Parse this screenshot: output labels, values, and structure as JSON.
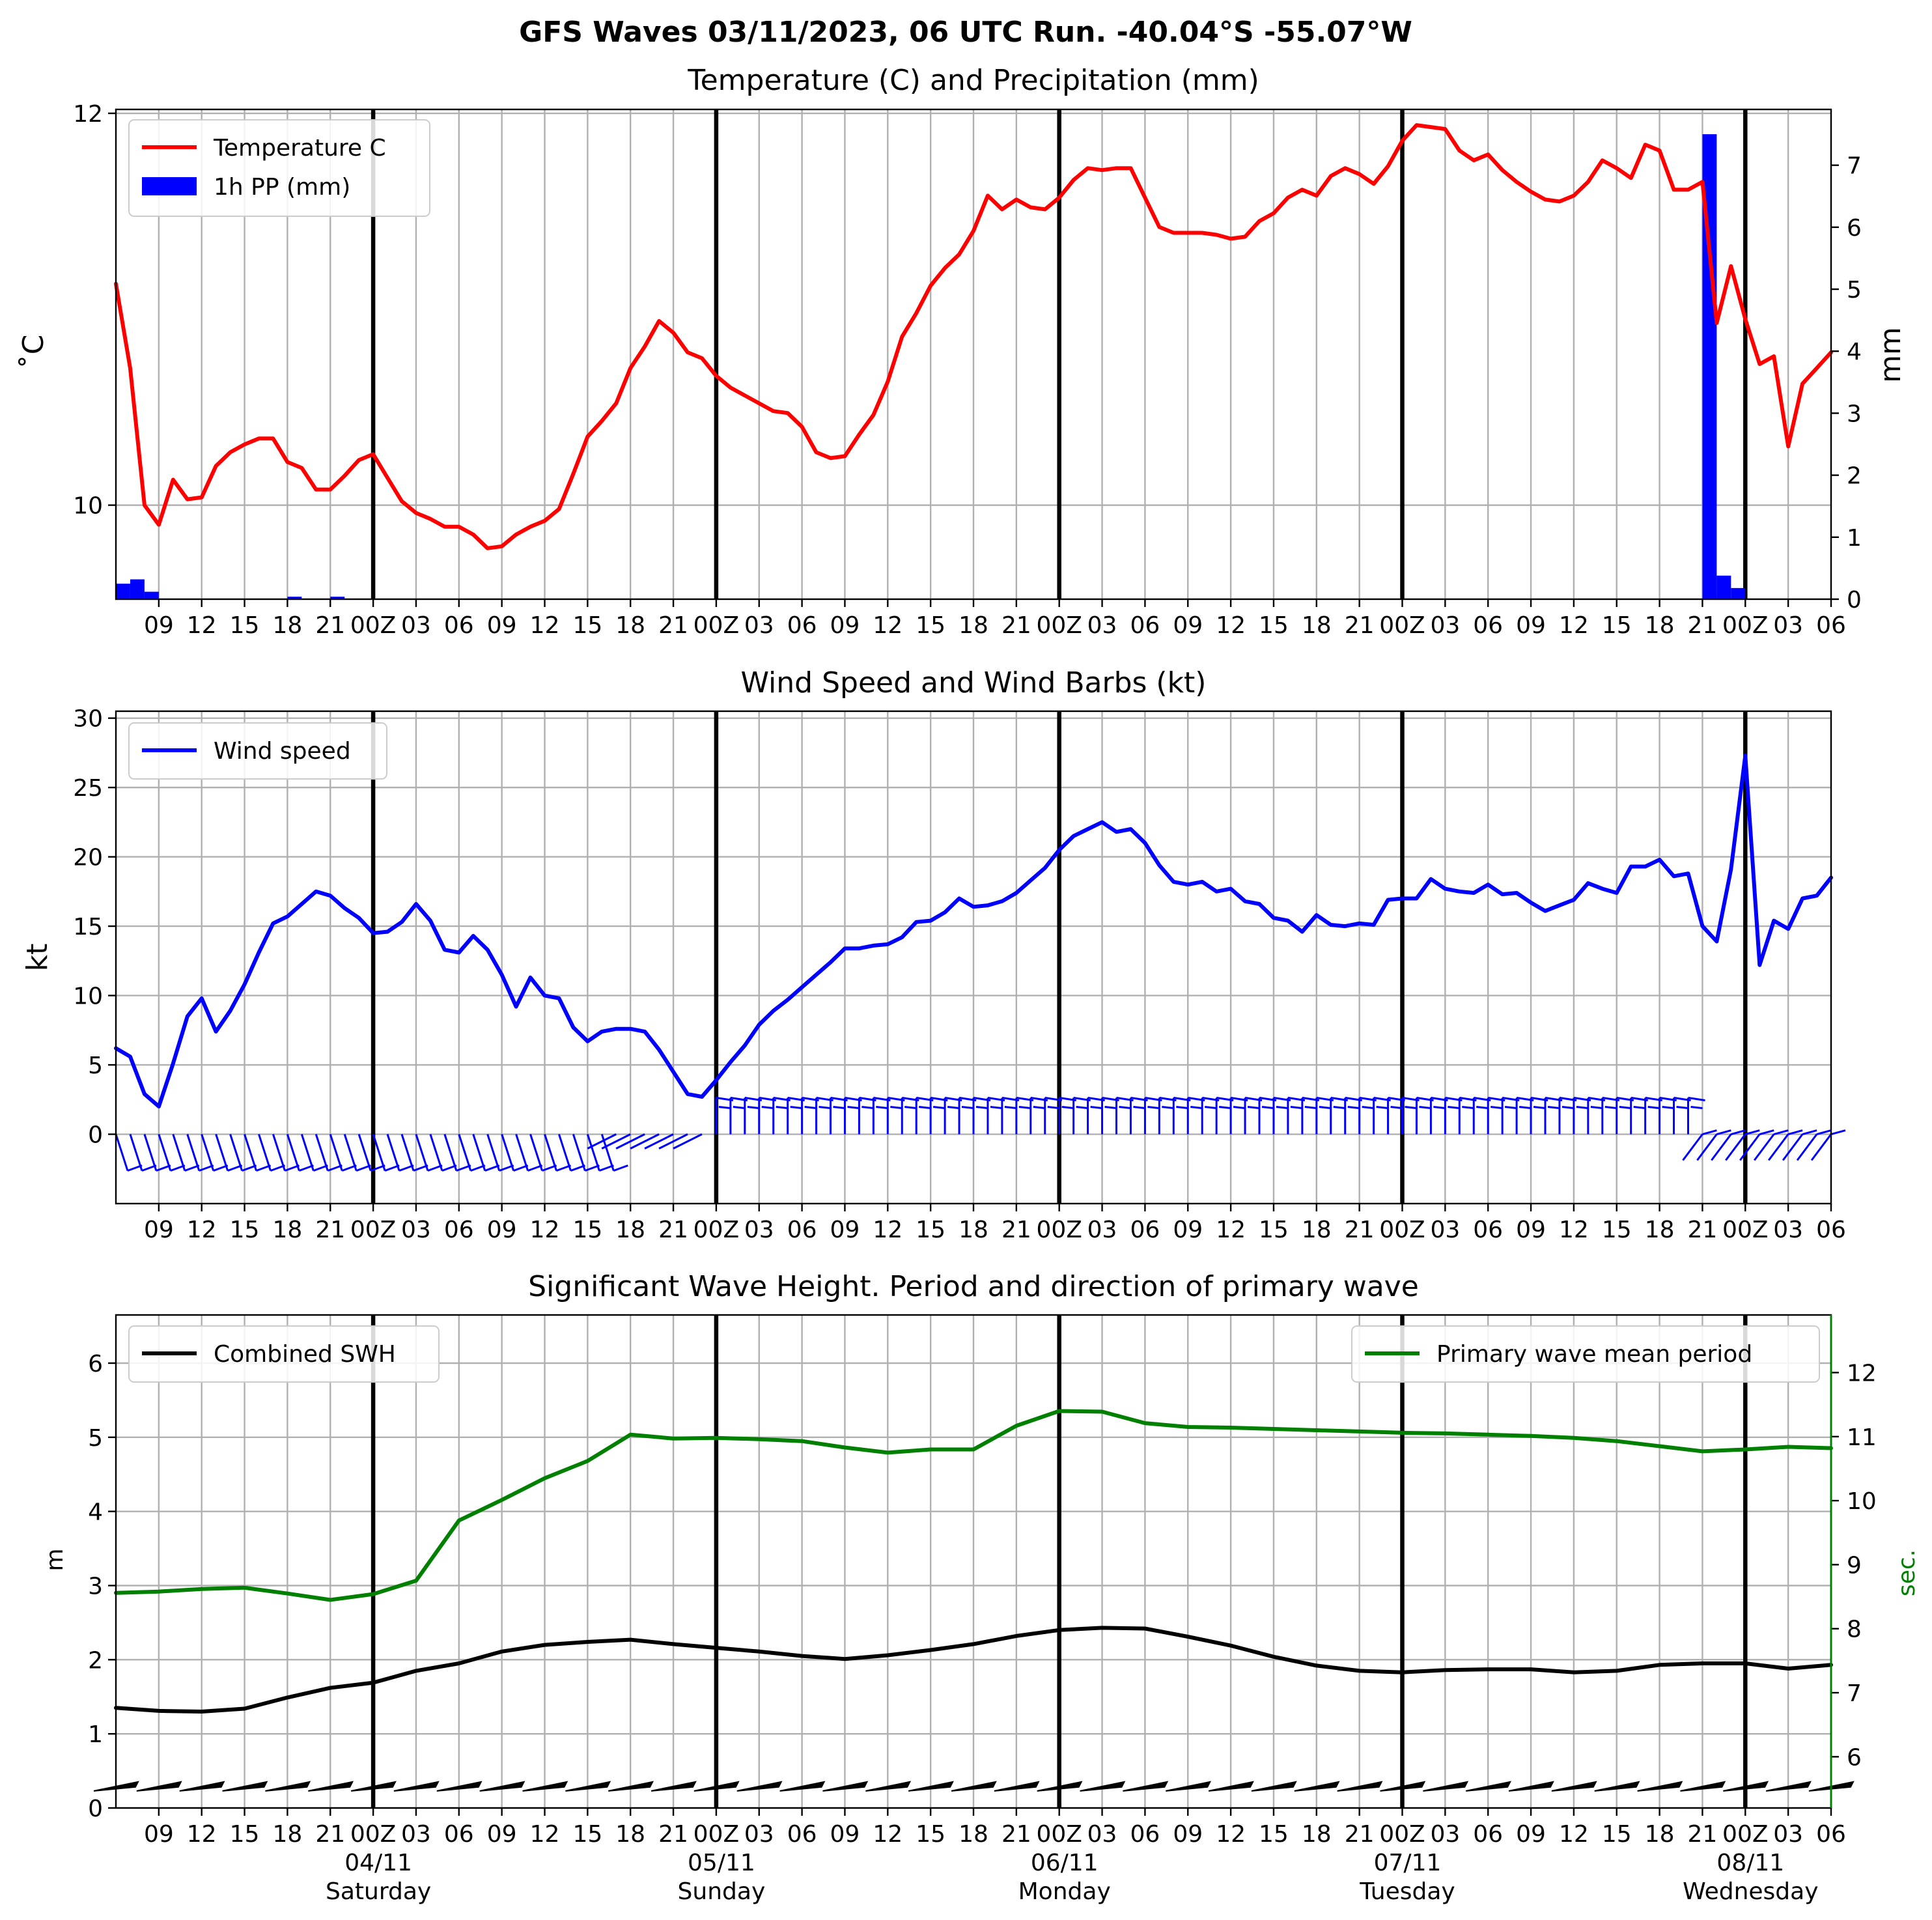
{
  "figure": {
    "suptitle": "GFS Waves 03/11/2023, 06 UTC Run. -40.04°S -55.07°W"
  },
  "time_axis": {
    "start_hour": 6,
    "end_hour": 126,
    "day_boundaries": [
      24,
      48,
      72,
      96,
      120
    ],
    "tick_labels": [
      "09",
      "12",
      "15",
      "18",
      "21",
      "00Z",
      "03",
      "06",
      "09",
      "12",
      "15",
      "18",
      "21",
      "00Z",
      "03",
      "06",
      "09",
      "12",
      "15",
      "18",
      "21",
      "00Z",
      "03",
      "06",
      "09",
      "12",
      "15",
      "18",
      "21",
      "00Z",
      "03",
      "06",
      "09",
      "12",
      "15",
      "18",
      "21",
      "00Z",
      "03",
      "06"
    ],
    "date_labels": [
      {
        "date": "04/11",
        "day": "Saturday"
      },
      {
        "date": "05/11",
        "day": "Sunday"
      },
      {
        "date": "06/11",
        "day": "Monday"
      },
      {
        "date": "07/11",
        "day": "Tuesday"
      },
      {
        "date": "08/11",
        "day": "Wednesday"
      }
    ]
  },
  "chart_data": [
    {
      "type": "line",
      "title": "Temperature (C) and Precipitation (mm)",
      "ylabel": "˚C",
      "ylabel_right": "mm",
      "ylim": [
        9.52,
        12.02
      ],
      "ylim_right": [
        0,
        7.9
      ],
      "yticks": [
        10,
        12
      ],
      "yticks_right": [
        0,
        1,
        2,
        3,
        4,
        5,
        6,
        7
      ],
      "legend": [
        "Temperature C",
        "1h PP (mm)"
      ],
      "colors": {
        "temperature": "#ff0000",
        "precip": "#0000ff"
      },
      "series": [
        {
          "name": "Temperature C",
          "x": [
            6,
            7,
            8,
            9,
            10,
            11,
            12,
            13,
            14,
            15,
            16,
            17,
            18,
            19,
            20,
            21,
            22,
            23,
            24,
            25,
            26,
            27,
            28,
            29,
            30,
            31,
            32,
            33,
            34,
            35,
            36,
            37,
            38,
            39,
            40,
            41,
            42,
            43,
            44,
            45,
            46,
            47,
            48,
            49,
            50,
            51,
            52,
            53,
            54,
            55,
            56,
            57,
            58,
            59,
            60,
            61,
            62,
            63,
            64,
            65,
            66,
            67,
            68,
            69,
            70,
            71,
            72,
            73,
            74,
            75,
            76,
            77,
            78,
            79,
            80,
            81,
            82,
            83,
            84,
            85,
            86,
            87,
            88,
            89,
            90,
            91,
            92,
            93,
            94,
            95,
            96,
            97,
            98,
            99,
            100,
            101,
            102,
            103,
            104,
            105,
            106,
            107,
            108,
            109,
            110,
            111,
            112,
            113,
            114,
            115,
            116,
            117,
            118,
            119,
            120,
            121,
            122,
            123,
            124,
            125,
            126
          ],
          "y": [
            11.13,
            10.7,
            10.0,
            9.9,
            10.13,
            10.03,
            10.04,
            10.2,
            10.27,
            10.31,
            10.34,
            10.34,
            10.22,
            10.19,
            10.08,
            10.08,
            10.15,
            10.23,
            10.26,
            10.14,
            10.02,
            9.96,
            9.93,
            9.89,
            9.89,
            9.85,
            9.78,
            9.79,
            9.85,
            9.89,
            9.92,
            9.98,
            10.16,
            10.35,
            10.43,
            10.52,
            10.7,
            10.81,
            10.94,
            10.88,
            10.78,
            10.75,
            10.66,
            10.6,
            10.56,
            10.52,
            10.48,
            10.47,
            10.4,
            10.27,
            10.24,
            10.25,
            10.36,
            10.46,
            10.63,
            10.86,
            10.98,
            11.12,
            11.21,
            11.28,
            11.4,
            11.58,
            11.51,
            11.56,
            11.52,
            11.51,
            11.57,
            11.66,
            11.72,
            11.71,
            11.72,
            11.72,
            11.57,
            11.42,
            11.39,
            11.39,
            11.39,
            11.38,
            11.36,
            11.37,
            11.45,
            11.49,
            11.57,
            11.61,
            11.58,
            11.68,
            11.72,
            11.69,
            11.64,
            11.73,
            11.86,
            11.94,
            11.93,
            11.92,
            11.81,
            11.76,
            11.79,
            11.71,
            11.65,
            11.6,
            11.56,
            11.55,
            11.58,
            11.65,
            11.76,
            11.72,
            11.67,
            11.84,
            11.81,
            11.61,
            11.61,
            11.65,
            10.93,
            11.22,
            10.95,
            10.72,
            10.76,
            10.3,
            10.62,
            10.7,
            10.78
          ]
        },
        {
          "name": "1h PP (mm)",
          "type": "bar",
          "x": [
            6,
            7,
            8,
            9,
            18,
            21,
            117,
            118,
            119
          ],
          "values": [
            0.25,
            0.32,
            0.12,
            0,
            0.04,
            0.04,
            7.5,
            0.38,
            0.18
          ]
        }
      ]
    },
    {
      "type": "line",
      "title": "Wind Speed and Wind Barbs (kt)",
      "ylabel": "kt",
      "ylim": [
        -5,
        30.5
      ],
      "yticks": [
        0,
        5,
        10,
        15,
        20,
        25,
        30
      ],
      "legend": [
        "Wind speed"
      ],
      "colors": {
        "wind": "#0000ff"
      },
      "series": [
        {
          "name": "Wind speed",
          "x": [
            6,
            7,
            8,
            9,
            10,
            11,
            12,
            13,
            14,
            15,
            16,
            17,
            18,
            19,
            20,
            21,
            22,
            23,
            24,
            25,
            26,
            27,
            28,
            29,
            30,
            31,
            32,
            33,
            34,
            35,
            36,
            37,
            38,
            39,
            40,
            41,
            42,
            43,
            44,
            45,
            46,
            47,
            48,
            49,
            50,
            51,
            52,
            53,
            54,
            55,
            56,
            57,
            58,
            59,
            60,
            61,
            62,
            63,
            64,
            65,
            66,
            67,
            68,
            69,
            70,
            71,
            72,
            73,
            74,
            75,
            76,
            77,
            78,
            79,
            80,
            81,
            82,
            83,
            84,
            85,
            86,
            87,
            88,
            89,
            90,
            91,
            92,
            93,
            94,
            95,
            96,
            97,
            98,
            99,
            100,
            101,
            102,
            103,
            104,
            105,
            106,
            107,
            108,
            109,
            110,
            111,
            112,
            113,
            114,
            115,
            116,
            117,
            118,
            119,
            120,
            121,
            122,
            123,
            124,
            125,
            126
          ],
          "y": [
            6.2,
            5.6,
            2.9,
            2.0,
            5.1,
            8.5,
            9.8,
            7.4,
            8.9,
            10.8,
            13.1,
            15.2,
            15.7,
            16.6,
            17.5,
            17.2,
            16.3,
            15.6,
            14.5,
            14.6,
            15.3,
            16.6,
            15.4,
            13.3,
            13.1,
            14.3,
            13.3,
            11.5,
            9.2,
            11.3,
            10.0,
            9.8,
            7.7,
            6.7,
            7.4,
            7.6,
            7.6,
            7.4,
            6.1,
            4.5,
            2.9,
            2.7,
            3.9,
            5.2,
            6.4,
            7.9,
            8.9,
            9.7,
            10.6,
            11.5,
            12.4,
            13.4,
            13.4,
            13.6,
            13.7,
            14.2,
            15.3,
            15.4,
            16.0,
            17.0,
            16.4,
            16.5,
            16.8,
            17.4,
            18.3,
            19.2,
            20.5,
            21.5,
            22.0,
            22.5,
            21.8,
            22.0,
            21.0,
            19.4,
            18.2,
            18.0,
            18.2,
            17.5,
            17.7,
            16.8,
            16.6,
            15.6,
            15.4,
            14.6,
            15.8,
            15.1,
            15.0,
            15.2,
            15.1,
            16.9,
            17.0,
            17.0,
            18.4,
            17.7,
            17.5,
            17.4,
            18.0,
            17.3,
            17.4,
            16.7,
            16.1,
            16.5,
            16.9,
            18.1,
            17.7,
            17.4,
            19.3,
            19.3,
            19.8,
            18.6,
            18.8,
            15.0,
            13.9,
            19.1,
            27.3,
            12.2,
            15.4,
            14.8,
            17.0,
            17.2,
            18.5
          ]
        }
      ]
    },
    {
      "type": "line",
      "title": "Significant Wave Height. Period and direction of primary wave",
      "ylabel": "m",
      "ylabel_right": "sec.",
      "ylim": [
        0,
        6.65
      ],
      "ylim_right": [
        5.2,
        12.9
      ],
      "yticks": [
        0,
        1,
        2,
        3,
        4,
        5,
        6
      ],
      "yticks_right": [
        6,
        7,
        8,
        9,
        10,
        11,
        12
      ],
      "legend": [
        "Combined SWH",
        "Primary wave mean period"
      ],
      "colors": {
        "swh": "#000000",
        "period": "#008000"
      },
      "series": [
        {
          "name": "Combined SWH",
          "x": [
            6,
            9,
            12,
            15,
            18,
            21,
            24,
            27,
            30,
            33,
            36,
            39,
            42,
            45,
            48,
            51,
            54,
            57,
            60,
            63,
            66,
            69,
            72,
            75,
            78,
            81,
            84,
            87,
            90,
            93,
            96,
            99,
            102,
            105,
            108,
            111,
            114,
            117,
            120,
            123,
            126
          ],
          "y": [
            1.35,
            1.31,
            1.3,
            1.34,
            1.49,
            1.62,
            1.69,
            1.85,
            1.95,
            2.11,
            2.2,
            2.24,
            2.27,
            2.21,
            2.16,
            2.11,
            2.05,
            2.01,
            2.06,
            2.13,
            2.21,
            2.32,
            2.4,
            2.43,
            2.42,
            2.31,
            2.19,
            2.04,
            1.92,
            1.85,
            1.83,
            1.86,
            1.87,
            1.87,
            1.83,
            1.85,
            1.93,
            1.95,
            1.95,
            1.88,
            1.93
          ]
        },
        {
          "name": "Primary wave mean period",
          "x": [
            6,
            9,
            12,
            15,
            18,
            21,
            24,
            27,
            30,
            33,
            36,
            39,
            42,
            45,
            48,
            51,
            54,
            57,
            60,
            63,
            66,
            69,
            72,
            75,
            78,
            81,
            84,
            87,
            90,
            93,
            96,
            99,
            102,
            105,
            108,
            111,
            114,
            117,
            120,
            123,
            126
          ],
          "y": [
            8.56,
            8.58,
            8.62,
            8.64,
            8.55,
            8.45,
            8.54,
            8.75,
            9.69,
            10.01,
            10.35,
            10.62,
            11.03,
            10.97,
            10.98,
            10.96,
            10.93,
            10.83,
            10.75,
            10.8,
            10.8,
            11.17,
            11.4,
            11.39,
            11.21,
            11.15,
            11.14,
            11.12,
            11.1,
            11.08,
            11.06,
            11.05,
            11.03,
            11.01,
            10.98,
            10.93,
            10.85,
            10.77,
            10.8,
            10.84,
            10.82
          ]
        }
      ]
    }
  ]
}
